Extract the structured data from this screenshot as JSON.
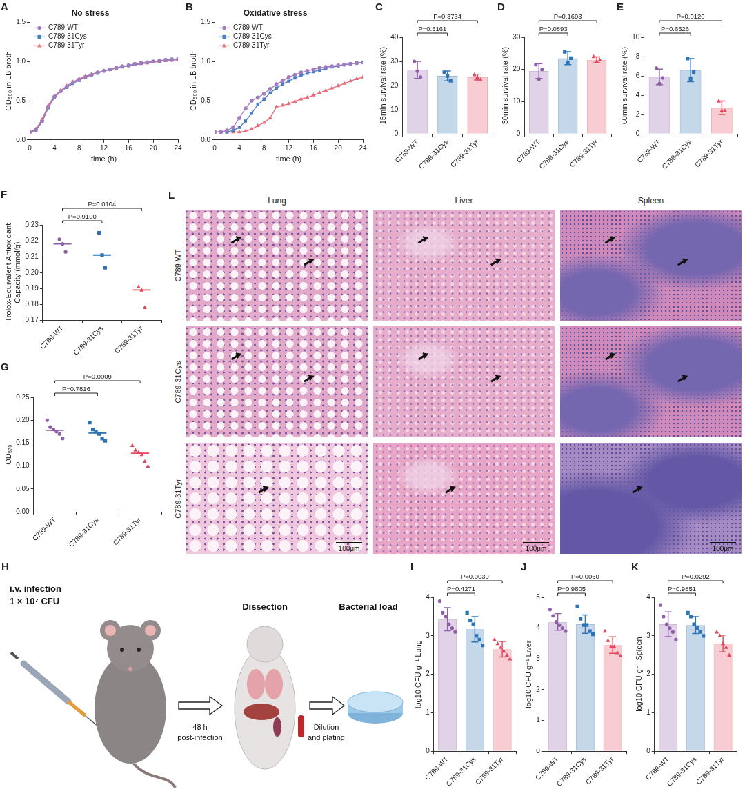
{
  "chart_data": [
    {
      "panel": "A",
      "type": "line",
      "title": "No stress",
      "x_label": "time (h)",
      "y_label": "OD₆₀₀ in LB broth",
      "x": [
        0,
        1,
        2,
        3,
        4,
        5,
        6,
        7,
        8,
        9,
        10,
        11,
        12,
        13,
        14,
        15,
        16,
        17,
        18,
        19,
        20,
        21,
        22,
        23,
        24
      ],
      "series": [
        {
          "name": "C789-WT",
          "color": "#a07cc0",
          "marker": "circle",
          "values": [
            0.1,
            0.13,
            0.24,
            0.42,
            0.55,
            0.62,
            0.68,
            0.73,
            0.77,
            0.8,
            0.83,
            0.86,
            0.88,
            0.9,
            0.92,
            0.94,
            0.95,
            0.97,
            0.98,
            0.99,
            1.0,
            1.01,
            1.02,
            1.02,
            1.03
          ]
        },
        {
          "name": "C789-31Cys",
          "color": "#4a7cc4",
          "marker": "square",
          "values": [
            0.1,
            0.12,
            0.23,
            0.41,
            0.54,
            0.62,
            0.67,
            0.72,
            0.76,
            0.8,
            0.83,
            0.85,
            0.88,
            0.9,
            0.92,
            0.93,
            0.95,
            0.96,
            0.98,
            0.99,
            1.0,
            1.01,
            1.02,
            1.03,
            1.03
          ]
        },
        {
          "name": "C789-31Tyr",
          "color": "#e86a78",
          "marker": "triangle",
          "values": [
            0.1,
            0.14,
            0.26,
            0.44,
            0.56,
            0.63,
            0.69,
            0.74,
            0.78,
            0.81,
            0.84,
            0.86,
            0.88,
            0.9,
            0.91,
            0.93,
            0.95,
            0.96,
            0.97,
            0.98,
            0.99,
            1.0,
            1.01,
            1.02,
            1.02
          ]
        }
      ],
      "xlim": [
        0,
        24
      ],
      "xticks": [
        0,
        4,
        8,
        12,
        16,
        20,
        24
      ],
      "ylim": [
        0,
        1.5
      ],
      "yticks": [
        {
          "value": 0,
          "label": "0.0"
        },
        0.5,
        {
          "value": 1,
          "label": "1.0"
        },
        1.5
      ],
      "legend": "upper left",
      "grid": false
    },
    {
      "panel": "B",
      "type": "line",
      "title": "Oxidative stress",
      "x_label": "time (h)",
      "y_label": "OD₆₀₀ in LB broth",
      "x": [
        0,
        1,
        2,
        3,
        4,
        5,
        6,
        7,
        8,
        9,
        10,
        11,
        12,
        13,
        14,
        15,
        16,
        17,
        18,
        19,
        20,
        21,
        22,
        23,
        24
      ],
      "series": [
        {
          "name": "C789-WT",
          "color": "#a07cc0",
          "marker": "circle",
          "values": [
            0.1,
            0.1,
            0.12,
            0.16,
            0.28,
            0.4,
            0.5,
            0.54,
            0.59,
            0.65,
            0.71,
            0.75,
            0.8,
            0.83,
            0.86,
            0.88,
            0.9,
            0.92,
            0.93,
            0.94,
            0.95,
            0.96,
            0.97,
            0.98,
            0.99
          ]
        },
        {
          "name": "C789-31Cys",
          "color": "#4a7cc4",
          "marker": "square",
          "values": [
            0.1,
            0.1,
            0.1,
            0.12,
            0.16,
            0.24,
            0.34,
            0.45,
            0.52,
            0.6,
            0.66,
            0.71,
            0.75,
            0.79,
            0.82,
            0.85,
            0.87,
            0.89,
            0.91,
            0.93,
            0.94,
            0.96,
            0.97,
            0.98,
            0.99
          ]
        },
        {
          "name": "C789-31Tyr",
          "color": "#e86a78",
          "marker": "triangle",
          "values": [
            0.1,
            0.1,
            0.1,
            0.1,
            0.1,
            0.11,
            0.14,
            0.18,
            0.22,
            0.28,
            0.42,
            0.44,
            0.46,
            0.49,
            0.52,
            0.54,
            0.57,
            0.6,
            0.63,
            0.66,
            0.69,
            0.72,
            0.75,
            0.78,
            0.8
          ]
        }
      ],
      "xlim": [
        0,
        24
      ],
      "xticks": [
        0,
        4,
        8,
        12,
        16,
        20,
        24
      ],
      "ylim": [
        0,
        1.5
      ],
      "yticks": [
        {
          "value": 0,
          "label": "0.0"
        },
        0.5,
        {
          "value": 1,
          "label": "1.0"
        },
        1.5
      ],
      "legend": "upper left",
      "grid": false
    },
    {
      "panel": "C",
      "type": "bar",
      "y_label": "15min survival rate (%)",
      "categories": [
        "C789-WT",
        "C789-31Cys",
        "C789-31Tyr"
      ],
      "values": [
        26.5,
        24.0,
        23.5
      ],
      "errors": [
        3.5,
        2.0,
        1.2
      ],
      "points": [
        [
          30,
          26,
          23.5
        ],
        [
          25.5,
          24,
          22
        ],
        [
          24.5,
          23.5,
          22.5
        ]
      ],
      "colors": [
        "#8e5ea8",
        "#2e74b5",
        "#e2475c"
      ],
      "markers": [
        "circle",
        "square",
        "triangle"
      ],
      "ylim": [
        0,
        40
      ],
      "yticks": [
        0,
        10,
        20,
        30,
        40
      ],
      "grid": false,
      "comparisons": [
        {
          "between": [
            "C789-WT",
            "C789-31Cys"
          ],
          "label": "P=0.5161"
        },
        {
          "between": [
            "C789-WT",
            "C789-31Tyr"
          ],
          "label": "P=0.3734"
        }
      ]
    },
    {
      "panel": "D",
      "type": "bar",
      "y_label": "30min survival rate (%)",
      "categories": [
        "C789-WT",
        "C789-31Cys",
        "C789-31Tyr"
      ],
      "values": [
        19.5,
        23.5,
        23.0
      ],
      "errors": [
        2.3,
        2.0,
        0.9
      ],
      "points": [
        [
          21.5,
          17,
          20
        ],
        [
          25.5,
          22,
          23.5
        ],
        [
          24,
          22.5,
          23
        ]
      ],
      "colors": [
        "#8e5ea8",
        "#2e74b5",
        "#e2475c"
      ],
      "markers": [
        "circle",
        "square",
        "triangle"
      ],
      "ylim": [
        0,
        30
      ],
      "yticks": [
        0,
        10,
        20,
        30
      ],
      "grid": false,
      "comparisons": [
        {
          "between": [
            "C789-WT",
            "C789-31Cys"
          ],
          "label": "P=0.0893"
        },
        {
          "between": [
            "C789-WT",
            "C789-31Tyr"
          ],
          "label": "P=0.1693"
        }
      ]
    },
    {
      "panel": "E",
      "type": "bar",
      "y_label": "60min survival rate (%)",
      "categories": [
        "C789-WT",
        "C789-31Cys",
        "C789-31Tyr"
      ],
      "values": [
        5.9,
        6.6,
        2.7
      ],
      "errors": [
        0.8,
        1.2,
        0.7
      ],
      "points": [
        [
          6.8,
          5.2,
          5.8
        ],
        [
          7.8,
          5.7,
          6.4
        ],
        [
          3.4,
          2.4,
          2.4
        ]
      ],
      "colors": [
        "#8e5ea8",
        "#2e74b5",
        "#e2475c"
      ],
      "markers": [
        "circle",
        "square",
        "triangle"
      ],
      "ylim": [
        0,
        10
      ],
      "yticks": [
        0,
        2,
        4,
        6,
        8,
        10
      ],
      "grid": false,
      "comparisons": [
        {
          "between": [
            "C789-WT",
            "C789-31Cys"
          ],
          "label": "P=0.6526"
        },
        {
          "between": [
            "C789-WT",
            "C789-31Tyr"
          ],
          "label": "P=0.0120"
        }
      ]
    },
    {
      "panel": "F",
      "type": "scatter",
      "y_label": "Trolox-Equivalent Antioxidant Capacity (mmol/g)",
      "categories": [
        "C789-WT",
        "C789-31Cys",
        "C789-31Tyr"
      ],
      "points": [
        [
          0.221,
          0.218,
          0.213
        ],
        [
          0.225,
          0.211,
          0.203
        ],
        [
          0.191,
          0.189,
          0.178
        ]
      ],
      "medians": [
        0.218,
        0.211,
        0.189
      ],
      "colors": [
        "#8e5ea8",
        "#2e74b5",
        "#e2475c"
      ],
      "markers": [
        "circle",
        "square",
        "triangle"
      ],
      "ylim": [
        0.17,
        0.23
      ],
      "yticks": [
        0.17,
        0.18,
        0.19,
        {
          "value": 0.2,
          "label": "0.20"
        },
        0.21,
        0.22,
        0.23
      ],
      "grid": false,
      "comparisons": [
        {
          "between": [
            "C789-WT",
            "C789-31Cys"
          ],
          "label": "P=0.9100"
        },
        {
          "between": [
            "C789-WT",
            "C789-31Tyr"
          ],
          "label": "P=0.0104"
        }
      ]
    },
    {
      "panel": "G",
      "type": "scatter",
      "y_label": "OD₅₇₀",
      "categories": [
        "C789-WT",
        "C789-31Cys",
        "C789-31Tyr"
      ],
      "points": [
        [
          0.2,
          0.185,
          0.18,
          0.175,
          0.17,
          0.16
        ],
        [
          0.195,
          0.18,
          0.175,
          0.17,
          0.16,
          0.155
        ],
        [
          0.145,
          0.135,
          0.13,
          0.125,
          0.11,
          0.1
        ]
      ],
      "medians": [
        0.178,
        0.172,
        0.128
      ],
      "colors": [
        "#8e5ea8",
        "#2e74b5",
        "#e2475c"
      ],
      "markers": [
        "circle",
        "square",
        "triangle"
      ],
      "ylim": [
        0,
        0.25
      ],
      "yticks": [
        {
          "value": 0,
          "label": "0.00"
        },
        0.05,
        {
          "value": 0.1,
          "label": "0.10"
        },
        0.15,
        {
          "value": 0.2,
          "label": "0.20"
        },
        0.25
      ],
      "grid": false,
      "comparisons": [
        {
          "between": [
            "C789-WT",
            "C789-31Cys"
          ],
          "label": "P=0.7816"
        },
        {
          "between": [
            "C789-WT",
            "C789-31Tyr"
          ],
          "label": "P=0.0009"
        }
      ]
    },
    {
      "panel": "I",
      "type": "bar",
      "y_label": "log10 CFU g⁻¹ Lung",
      "categories": [
        "C789-WT",
        "C789-31Cys",
        "C789-31Tyr"
      ],
      "values": [
        3.43,
        3.17,
        2.65
      ],
      "errors": [
        0.3,
        0.33,
        0.2
      ],
      "points": [
        [
          3.9,
          3.6,
          3.5,
          3.3,
          3.2,
          3.1
        ],
        [
          3.6,
          3.4,
          3.3,
          3.0,
          2.9,
          2.75
        ],
        [
          2.9,
          2.8,
          2.7,
          2.6,
          2.5,
          2.4
        ]
      ],
      "colors": [
        "#8e5ea8",
        "#2e74b5",
        "#e2475c"
      ],
      "markers": [
        "circle",
        "square",
        "triangle"
      ],
      "ylim": [
        0,
        4
      ],
      "yticks": [
        0,
        1,
        2,
        3,
        4
      ],
      "grid": false,
      "comparisons": [
        {
          "between": [
            "C789-WT",
            "C789-31Cys"
          ],
          "label": "P=0.4271"
        },
        {
          "between": [
            "C789-WT",
            "C789-31Tyr"
          ],
          "label": "P=0.0030"
        }
      ]
    },
    {
      "panel": "J",
      "type": "bar",
      "y_label": "log10 CFU g⁻¹ Liver",
      "categories": [
        "C789-WT",
        "C789-31Cys",
        "C789-31Tyr"
      ],
      "values": [
        4.2,
        4.13,
        3.45
      ],
      "errors": [
        0.27,
        0.3,
        0.27
      ],
      "points": [
        [
          4.6,
          4.4,
          4.2,
          4.1,
          4.0,
          3.9
        ],
        [
          4.7,
          4.3,
          4.1,
          4.1,
          3.9,
          3.8
        ],
        [
          3.9,
          3.6,
          3.4,
          3.4,
          3.2,
          3.1
        ]
      ],
      "colors": [
        "#8e5ea8",
        "#2e74b5",
        "#e2475c"
      ],
      "markers": [
        "circle",
        "square",
        "triangle"
      ],
      "ylim": [
        0,
        5
      ],
      "yticks": [
        0,
        1,
        2,
        3,
        4,
        5
      ],
      "grid": false,
      "comparisons": [
        {
          "between": [
            "C789-WT",
            "C789-31Cys"
          ],
          "label": "P=0.9805"
        },
        {
          "between": [
            "C789-WT",
            "C789-31Tyr"
          ],
          "label": "P=0.0060"
        }
      ]
    },
    {
      "panel": "K",
      "type": "bar",
      "y_label": "log10 CFU g⁻¹ Spleen",
      "categories": [
        "C789-WT",
        "C789-31Cys",
        "C789-31Tyr"
      ],
      "values": [
        3.3,
        3.28,
        2.8
      ],
      "errors": [
        0.32,
        0.22,
        0.22
      ],
      "points": [
        [
          3.8,
          3.5,
          3.3,
          3.2,
          3.1,
          2.9
        ],
        [
          3.6,
          3.5,
          3.3,
          3.2,
          3.1,
          3.0
        ],
        [
          3.1,
          3.0,
          2.8,
          2.7,
          2.5
        ]
      ],
      "colors": [
        "#8e5ea8",
        "#2e74b5",
        "#e2475c"
      ],
      "markers": [
        "circle",
        "square",
        "triangle"
      ],
      "ylim": [
        0,
        4
      ],
      "yticks": [
        0,
        1,
        2,
        3,
        4
      ],
      "grid": false,
      "comparisons": [
        {
          "between": [
            "C789-WT",
            "C789-31Cys"
          ],
          "label": "P=0.9851"
        },
        {
          "between": [
            "C789-WT",
            "C789-31Tyr"
          ],
          "label": "P=0.0292"
        }
      ]
    }
  ],
  "panel_H": {
    "panel": "H",
    "route": "i.v. infection",
    "dose": "1 × 10⁷ CFU",
    "step_2": "Dissection",
    "step_3": "Bacterial load",
    "arrow_1": [
      "48 h",
      "post-infection"
    ],
    "arrow_2": [
      "Dilution",
      "and plating"
    ]
  },
  "panel_L": {
    "panel": "L",
    "columns": [
      "Lung",
      "Liver",
      "Spleen"
    ],
    "rows": [
      "C789-WT",
      "C789-31Cys",
      "C789-31Tyr"
    ],
    "scale_bar": "100μm"
  }
}
